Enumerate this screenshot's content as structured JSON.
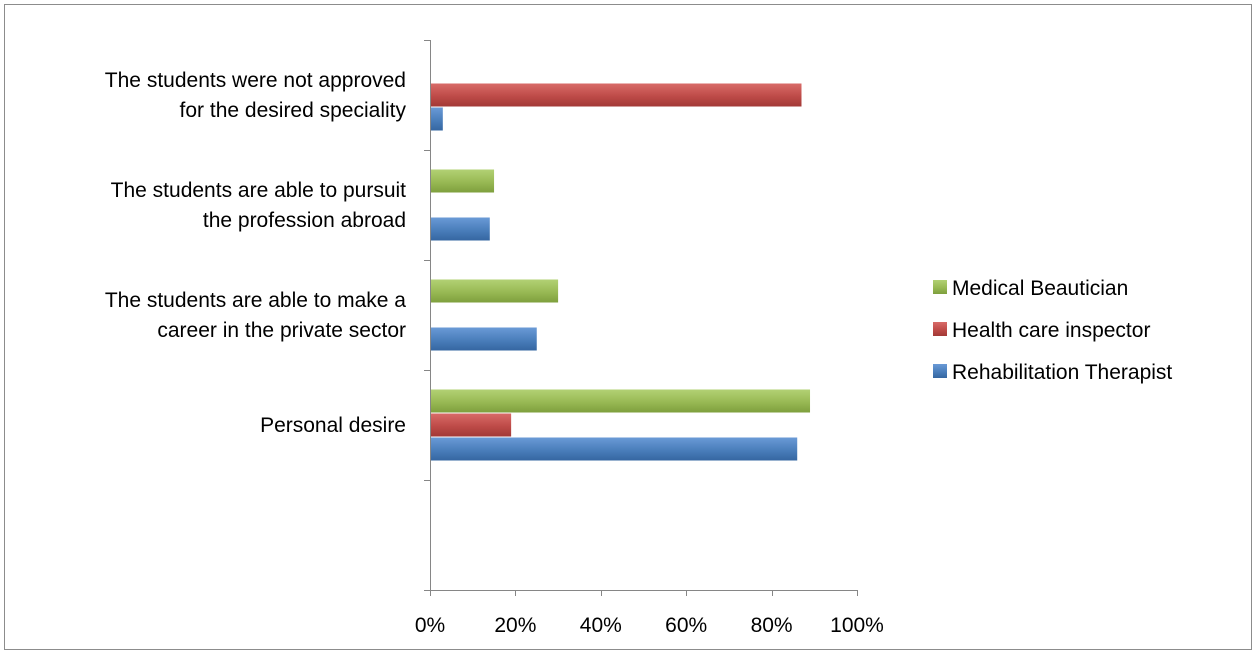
{
  "chart_data": {
    "type": "bar",
    "orientation": "horizontal",
    "title": "",
    "xlabel": "",
    "ylabel": "",
    "categories": [
      [
        "The students were not approved",
        "for the desired speciality"
      ],
      [
        "The students are able to pursuit",
        "the profession abroad"
      ],
      [
        "The students are able to make a",
        "career in the private sector"
      ],
      [
        "Personal desire"
      ]
    ],
    "series": [
      {
        "name": "Rehabilitation Therapist",
        "color": "#4a7ebb",
        "values": [
          3,
          14,
          25,
          86
        ]
      },
      {
        "name": "Health care inspector",
        "color": "#be4b48",
        "values": [
          87,
          0,
          0,
          19
        ]
      },
      {
        "name": "Medical Beautician",
        "color": "#98b954",
        "values": [
          0,
          15,
          30,
          89
        ]
      }
    ],
    "xlim": [
      0,
      100
    ],
    "x_ticks": [
      "0%",
      "20%",
      "40%",
      "60%",
      "80%",
      "100%"
    ],
    "grid": false,
    "legend_position": "right"
  }
}
